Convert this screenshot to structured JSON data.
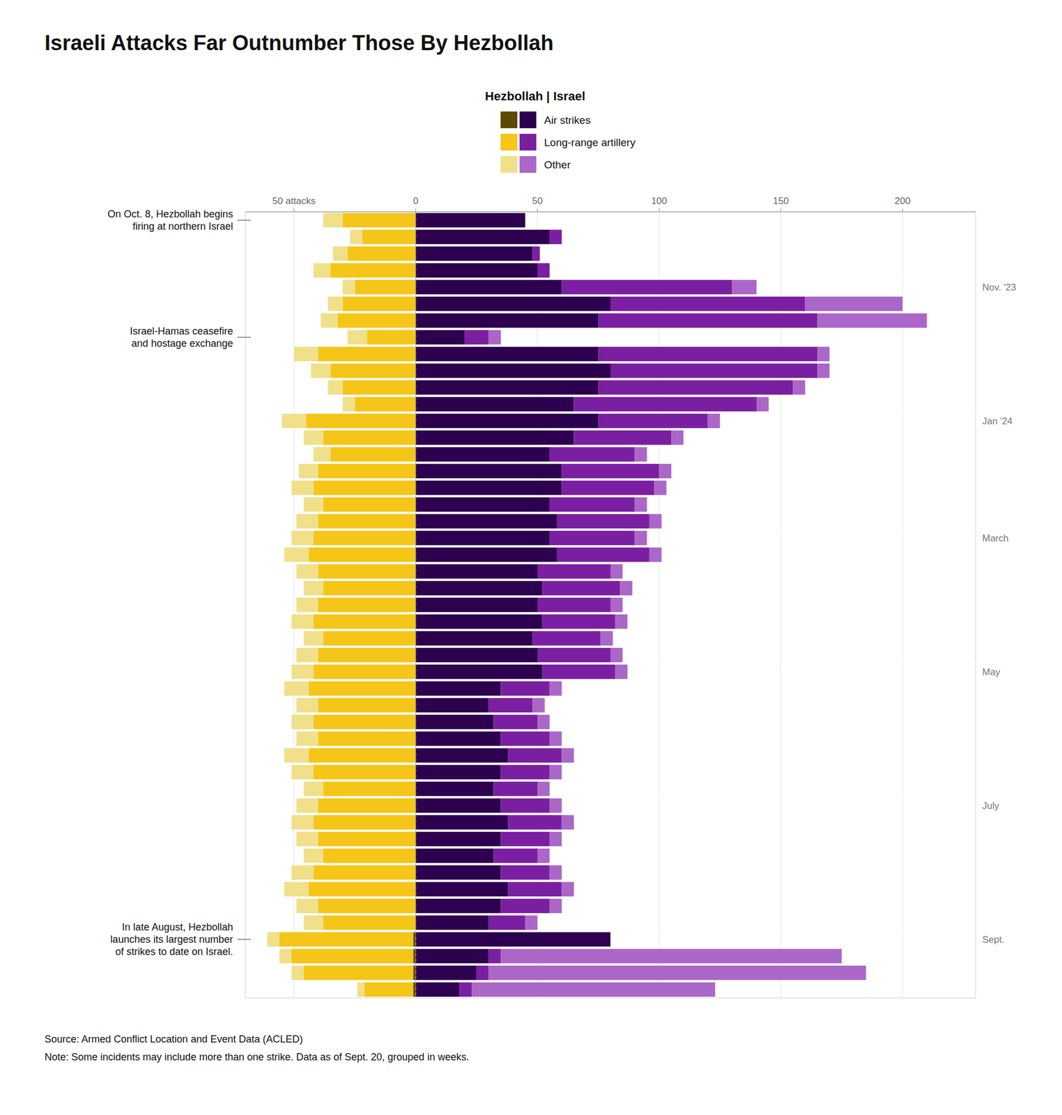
{
  "chart_data": {
    "type": "bar",
    "orientation": "horizontal",
    "stacked": true,
    "title": "Israeli Attacks Far Outnumber Those By Hezbollah",
    "subtitle": "Hezbollah | Israel",
    "legend": "top",
    "grid": true,
    "categories": [
      null,
      null,
      null,
      null,
      "Nov. '23",
      null,
      null,
      null,
      null,
      null,
      null,
      null,
      "Jan '24",
      null,
      null,
      null,
      null,
      null,
      null,
      "March",
      null,
      null,
      null,
      null,
      null,
      null,
      null,
      "May",
      null,
      null,
      null,
      null,
      null,
      null,
      null,
      "July",
      null,
      null,
      null,
      null,
      null,
      null,
      null,
      "Sept.",
      null,
      null,
      null
    ],
    "series": [
      {
        "name": "Air strikes",
        "color": "#5c4a00",
        "values": [
          0,
          0,
          0,
          0,
          0,
          0,
          0,
          0,
          0,
          0,
          0,
          0,
          0,
          0,
          0,
          0,
          0,
          0,
          0,
          0,
          0,
          0,
          0,
          0,
          0,
          0,
          0,
          0,
          0,
          0,
          0,
          0,
          0,
          0,
          0,
          0,
          0,
          0,
          0,
          0,
          0,
          0,
          0,
          -1,
          -1,
          -1,
          -1
        ]
      },
      {
        "name": "Long-range artillery",
        "color": "#f5c518",
        "values": [
          -30,
          -22,
          -28,
          -35,
          -25,
          -30,
          -32,
          -20,
          -40,
          -35,
          -30,
          -25,
          -45,
          -38,
          -35,
          -40,
          -42,
          -38,
          -40,
          -42,
          -44,
          -40,
          -38,
          -40,
          -42,
          -38,
          -40,
          -42,
          -44,
          -40,
          -42,
          -40,
          -44,
          -42,
          -38,
          -40,
          -42,
          -40,
          -38,
          -42,
          -44,
          -40,
          -38,
          -55,
          -50,
          -45,
          -20
        ]
      },
      {
        "name": "Other",
        "color": "#f0e08a",
        "values": [
          -8,
          -5,
          -6,
          -7,
          -5,
          -6,
          -7,
          -8,
          -10,
          -8,
          -6,
          -5,
          -10,
          -8,
          -7,
          -8,
          -9,
          -8,
          -9,
          -9,
          -10,
          -9,
          -8,
          -9,
          -9,
          -8,
          -9,
          -9,
          -10,
          -9,
          -9,
          -9,
          -10,
          -9,
          -8,
          -9,
          -9,
          -9,
          -8,
          -9,
          -10,
          -9,
          -8,
          -5,
          -5,
          -5,
          -3
        ]
      },
      {
        "name": "Air strikes",
        "color": "#2d0050",
        "values": [
          45,
          55,
          48,
          50,
          60,
          80,
          75,
          20,
          75,
          80,
          75,
          65,
          75,
          65,
          55,
          60,
          60,
          55,
          58,
          55,
          58,
          50,
          52,
          50,
          52,
          48,
          50,
          52,
          35,
          30,
          32,
          35,
          38,
          35,
          32,
          35,
          38,
          35,
          32,
          35,
          38,
          35,
          30,
          80,
          30,
          25,
          18
        ]
      },
      {
        "name": "Long-range artillery",
        "color": "#7b1fa2",
        "values": [
          0,
          5,
          3,
          5,
          70,
          80,
          90,
          10,
          90,
          85,
          80,
          75,
          45,
          40,
          35,
          40,
          38,
          35,
          38,
          35,
          38,
          30,
          32,
          30,
          30,
          28,
          30,
          30,
          20,
          18,
          18,
          20,
          22,
          20,
          18,
          20,
          22,
          20,
          18,
          20,
          22,
          20,
          15,
          0,
          5,
          5,
          5
        ]
      },
      {
        "name": "Other",
        "color": "#ab67c8",
        "values": [
          0,
          0,
          0,
          0,
          10,
          40,
          45,
          5,
          5,
          5,
          5,
          5,
          5,
          5,
          5,
          5,
          5,
          5,
          5,
          5,
          5,
          5,
          5,
          5,
          5,
          5,
          5,
          5,
          5,
          5,
          5,
          5,
          5,
          5,
          5,
          5,
          5,
          5,
          5,
          5,
          5,
          5,
          5,
          0,
          140,
          155,
          100
        ]
      }
    ],
    "xlim": [
      -70,
      230
    ],
    "xticks": [
      {
        "value": -50,
        "label": "50 attacks"
      },
      0,
      50,
      100,
      150,
      200
    ],
    "annotations": [
      {
        "text": "On Oct. 8, Hezbollah begins\nfiring at northern Israel",
        "index": 0
      },
      {
        "text": "Israel-Hamas ceasefire\nand hostage exchange",
        "index": 7
      },
      {
        "text": "In late August, Hezbollah\nlaunches its largest number\nof strikes to date on Israel.",
        "index": 43
      }
    ],
    "source": "Source: Armed Conflict Location and Event Data (ACLED)",
    "note": "Note: Some incidents may include more than one strike. Data as of Sept. 20, grouped in weeks."
  }
}
